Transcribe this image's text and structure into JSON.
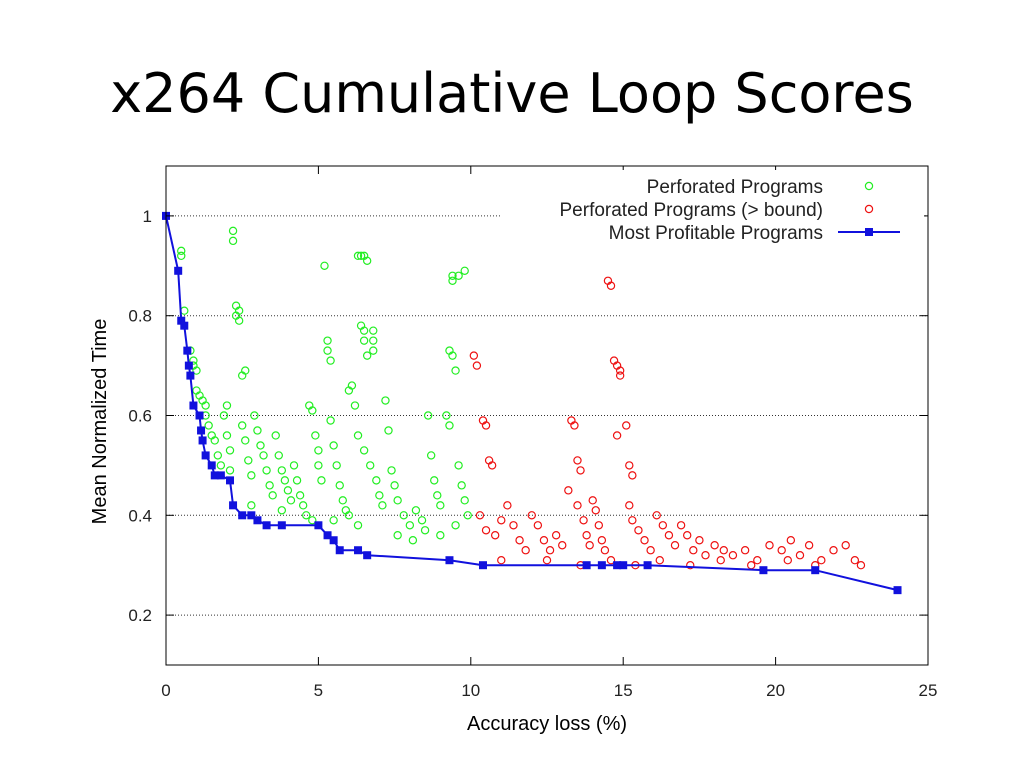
{
  "slide": {
    "title": "x264 Cumulative Loop Scores"
  },
  "chart_data": {
    "type": "scatter",
    "xlabel": "Accuracy loss (%)",
    "ylabel": "Mean Normalized Time",
    "xlim": [
      0,
      25
    ],
    "ylim": [
      0.1,
      1.1
    ],
    "x_ticks": [
      0,
      5,
      10,
      15,
      20,
      25
    ],
    "y_ticks": [
      0.2,
      0.4,
      0.6,
      0.8,
      1
    ],
    "grid": "horizontal dotted lines at y ticks",
    "legend_position": "top-right",
    "bound": 10,
    "colors": {
      "within_bound": "#22ee22",
      "over_bound": "#ee1111",
      "profitable": "#1111dd"
    },
    "series": [
      {
        "name": "Perforated Programs",
        "marker": "open-circle",
        "points": [
          [
            0.5,
            0.93
          ],
          [
            0.5,
            0.92
          ],
          [
            0.6,
            0.81
          ],
          [
            0.8,
            0.73
          ],
          [
            0.9,
            0.71
          ],
          [
            0.9,
            0.7
          ],
          [
            1.0,
            0.69
          ],
          [
            1.0,
            0.65
          ],
          [
            1.1,
            0.64
          ],
          [
            1.2,
            0.63
          ],
          [
            1.3,
            0.62
          ],
          [
            1.3,
            0.6
          ],
          [
            1.4,
            0.58
          ],
          [
            1.5,
            0.56
          ],
          [
            1.6,
            0.55
          ],
          [
            1.7,
            0.52
          ],
          [
            1.8,
            0.5
          ],
          [
            1.9,
            0.6
          ],
          [
            2.0,
            0.62
          ],
          [
            2.0,
            0.56
          ],
          [
            2.1,
            0.53
          ],
          [
            2.1,
            0.49
          ],
          [
            2.2,
            0.97
          ],
          [
            2.2,
            0.95
          ],
          [
            2.3,
            0.82
          ],
          [
            2.3,
            0.8
          ],
          [
            2.4,
            0.81
          ],
          [
            2.4,
            0.79
          ],
          [
            2.5,
            0.68
          ],
          [
            2.6,
            0.69
          ],
          [
            2.5,
            0.58
          ],
          [
            2.6,
            0.55
          ],
          [
            2.7,
            0.51
          ],
          [
            2.8,
            0.48
          ],
          [
            2.9,
            0.6
          ],
          [
            3.0,
            0.57
          ],
          [
            3.1,
            0.54
          ],
          [
            3.2,
            0.52
          ],
          [
            3.3,
            0.49
          ],
          [
            3.4,
            0.46
          ],
          [
            3.5,
            0.44
          ],
          [
            3.6,
            0.56
          ],
          [
            3.7,
            0.52
          ],
          [
            3.8,
            0.49
          ],
          [
            3.9,
            0.47
          ],
          [
            4.0,
            0.45
          ],
          [
            4.1,
            0.43
          ],
          [
            4.2,
            0.5
          ],
          [
            4.3,
            0.47
          ],
          [
            4.4,
            0.44
          ],
          [
            4.5,
            0.42
          ],
          [
            4.6,
            0.4
          ],
          [
            4.7,
            0.62
          ],
          [
            4.8,
            0.61
          ],
          [
            4.9,
            0.56
          ],
          [
            5.0,
            0.53
          ],
          [
            5.0,
            0.5
          ],
          [
            5.1,
            0.47
          ],
          [
            5.2,
            0.9
          ],
          [
            5.3,
            0.75
          ],
          [
            5.3,
            0.73
          ],
          [
            5.4,
            0.71
          ],
          [
            5.4,
            0.59
          ],
          [
            5.5,
            0.54
          ],
          [
            5.6,
            0.5
          ],
          [
            5.7,
            0.46
          ],
          [
            5.8,
            0.43
          ],
          [
            5.9,
            0.41
          ],
          [
            6.0,
            0.65
          ],
          [
            6.1,
            0.66
          ],
          [
            6.2,
            0.62
          ],
          [
            6.3,
            0.92
          ],
          [
            6.4,
            0.92
          ],
          [
            6.5,
            0.92
          ],
          [
            6.6,
            0.91
          ],
          [
            6.4,
            0.78
          ],
          [
            6.5,
            0.77
          ],
          [
            6.5,
            0.75
          ],
          [
            6.6,
            0.72
          ],
          [
            6.8,
            0.77
          ],
          [
            6.8,
            0.75
          ],
          [
            6.8,
            0.73
          ],
          [
            6.3,
            0.56
          ],
          [
            6.5,
            0.53
          ],
          [
            6.7,
            0.5
          ],
          [
            6.9,
            0.47
          ],
          [
            7.0,
            0.44
          ],
          [
            7.1,
            0.42
          ],
          [
            7.2,
            0.63
          ],
          [
            7.3,
            0.57
          ],
          [
            7.4,
            0.49
          ],
          [
            7.5,
            0.46
          ],
          [
            7.6,
            0.43
          ],
          [
            7.8,
            0.4
          ],
          [
            8.0,
            0.38
          ],
          [
            8.2,
            0.41
          ],
          [
            8.4,
            0.39
          ],
          [
            8.6,
            0.6
          ],
          [
            8.7,
            0.52
          ],
          [
            8.8,
            0.47
          ],
          [
            8.9,
            0.44
          ],
          [
            9.0,
            0.42
          ],
          [
            9.2,
            0.6
          ],
          [
            9.3,
            0.58
          ],
          [
            9.4,
            0.88
          ],
          [
            9.4,
            0.87
          ],
          [
            9.6,
            0.88
          ],
          [
            9.8,
            0.89
          ],
          [
            9.3,
            0.73
          ],
          [
            9.4,
            0.72
          ],
          [
            9.5,
            0.69
          ],
          [
            9.6,
            0.5
          ],
          [
            9.7,
            0.46
          ],
          [
            9.8,
            0.43
          ],
          [
            9.9,
            0.4
          ],
          [
            7.6,
            0.36
          ],
          [
            8.1,
            0.35
          ],
          [
            8.5,
            0.37
          ],
          [
            9.0,
            0.36
          ],
          [
            9.5,
            0.38
          ],
          [
            6.0,
            0.4
          ],
          [
            6.3,
            0.38
          ],
          [
            5.5,
            0.39
          ],
          [
            4.8,
            0.39
          ],
          [
            3.8,
            0.41
          ],
          [
            2.8,
            0.42
          ]
        ]
      },
      {
        "name": "Perforated Programs (> bound)",
        "marker": "open-circle",
        "points": [
          [
            10.1,
            0.72
          ],
          [
            10.2,
            0.7
          ],
          [
            10.4,
            0.59
          ],
          [
            10.5,
            0.58
          ],
          [
            10.6,
            0.51
          ],
          [
            10.7,
            0.5
          ],
          [
            10.3,
            0.4
          ],
          [
            10.5,
            0.37
          ],
          [
            10.8,
            0.36
          ],
          [
            11.0,
            0.39
          ],
          [
            11.2,
            0.42
          ],
          [
            11.4,
            0.38
          ],
          [
            11.6,
            0.35
          ],
          [
            11.8,
            0.33
          ],
          [
            12.0,
            0.4
          ],
          [
            12.2,
            0.38
          ],
          [
            12.4,
            0.35
          ],
          [
            12.6,
            0.33
          ],
          [
            12.8,
            0.36
          ],
          [
            13.0,
            0.34
          ],
          [
            13.2,
            0.45
          ],
          [
            13.3,
            0.59
          ],
          [
            13.4,
            0.58
          ],
          [
            13.5,
            0.51
          ],
          [
            13.6,
            0.49
          ],
          [
            13.5,
            0.42
          ],
          [
            13.7,
            0.39
          ],
          [
            13.8,
            0.36
          ],
          [
            13.9,
            0.34
          ],
          [
            14.0,
            0.43
          ],
          [
            14.1,
            0.41
          ],
          [
            14.2,
            0.38
          ],
          [
            14.3,
            0.35
          ],
          [
            14.4,
            0.33
          ],
          [
            14.5,
            0.87
          ],
          [
            14.6,
            0.86
          ],
          [
            14.7,
            0.71
          ],
          [
            14.8,
            0.7
          ],
          [
            14.9,
            0.69
          ],
          [
            14.9,
            0.68
          ],
          [
            14.8,
            0.56
          ],
          [
            15.1,
            0.58
          ],
          [
            15.2,
            0.5
          ],
          [
            15.3,
            0.48
          ],
          [
            15.2,
            0.42
          ],
          [
            15.3,
            0.39
          ],
          [
            15.5,
            0.37
          ],
          [
            15.7,
            0.35
          ],
          [
            15.9,
            0.33
          ],
          [
            16.1,
            0.4
          ],
          [
            16.3,
            0.38
          ],
          [
            16.5,
            0.36
          ],
          [
            16.7,
            0.34
          ],
          [
            16.9,
            0.38
          ],
          [
            17.1,
            0.36
          ],
          [
            17.3,
            0.33
          ],
          [
            17.5,
            0.35
          ],
          [
            17.7,
            0.32
          ],
          [
            18.0,
            0.34
          ],
          [
            18.3,
            0.33
          ],
          [
            18.6,
            0.32
          ],
          [
            19.0,
            0.33
          ],
          [
            19.4,
            0.31
          ],
          [
            19.8,
            0.34
          ],
          [
            20.2,
            0.33
          ],
          [
            20.5,
            0.35
          ],
          [
            20.8,
            0.32
          ],
          [
            21.1,
            0.34
          ],
          [
            21.5,
            0.31
          ],
          [
            21.9,
            0.33
          ],
          [
            22.3,
            0.34
          ],
          [
            22.6,
            0.31
          ],
          [
            22.8,
            0.3
          ],
          [
            12.5,
            0.31
          ],
          [
            13.6,
            0.3
          ],
          [
            14.6,
            0.31
          ],
          [
            15.4,
            0.3
          ],
          [
            16.2,
            0.31
          ],
          [
            17.2,
            0.3
          ],
          [
            18.2,
            0.31
          ],
          [
            19.2,
            0.3
          ],
          [
            20.4,
            0.31
          ],
          [
            21.3,
            0.3
          ],
          [
            11.0,
            0.31
          ]
        ]
      },
      {
        "name": "Most Profitable Programs",
        "marker": "filled-square-line",
        "points": [
          [
            0,
            1.0
          ],
          [
            0.4,
            0.89
          ],
          [
            0.5,
            0.79
          ],
          [
            0.6,
            0.78
          ],
          [
            0.7,
            0.73
          ],
          [
            0.75,
            0.7
          ],
          [
            0.8,
            0.68
          ],
          [
            0.9,
            0.62
          ],
          [
            1.1,
            0.6
          ],
          [
            1.15,
            0.57
          ],
          [
            1.2,
            0.55
          ],
          [
            1.3,
            0.52
          ],
          [
            1.5,
            0.5
          ],
          [
            1.6,
            0.48
          ],
          [
            1.8,
            0.48
          ],
          [
            2.1,
            0.47
          ],
          [
            2.2,
            0.42
          ],
          [
            2.5,
            0.4
          ],
          [
            2.8,
            0.4
          ],
          [
            3.0,
            0.39
          ],
          [
            3.3,
            0.38
          ],
          [
            3.8,
            0.38
          ],
          [
            5.0,
            0.38
          ],
          [
            5.3,
            0.36
          ],
          [
            5.5,
            0.35
          ],
          [
            5.7,
            0.33
          ],
          [
            6.3,
            0.33
          ],
          [
            6.6,
            0.32
          ],
          [
            9.3,
            0.31
          ],
          [
            10.4,
            0.3
          ],
          [
            13.8,
            0.3
          ],
          [
            14.3,
            0.3
          ],
          [
            14.8,
            0.3
          ],
          [
            15.0,
            0.3
          ],
          [
            15.8,
            0.3
          ],
          [
            19.6,
            0.29
          ],
          [
            21.3,
            0.29
          ],
          [
            24.0,
            0.25
          ]
        ]
      }
    ]
  }
}
